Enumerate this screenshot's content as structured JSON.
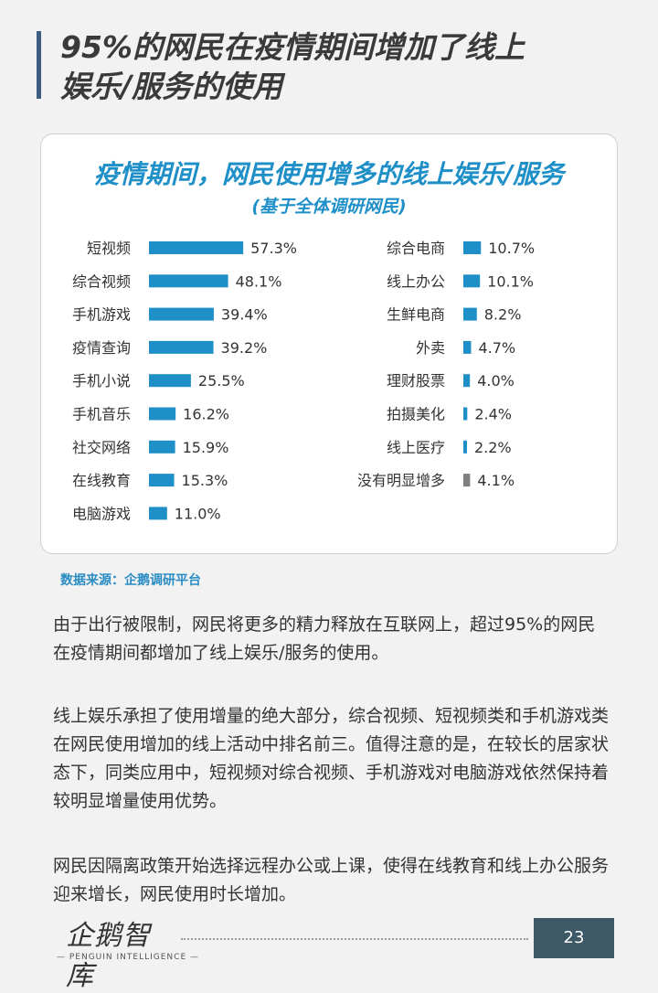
{
  "header": {
    "title_line1": "95%的网民在疫情期间增加了线上",
    "title_line2": "娱乐/服务的使用"
  },
  "chart": {
    "title": "疫情期间，网民使用增多的线上娱乐/服务",
    "subtitle": "(基于全体调研网民)"
  },
  "chart_data": {
    "type": "bar",
    "orientation": "horizontal",
    "title": "疫情期间，网民使用增多的线上娱乐/服务",
    "subtitle": "(基于全体调研网民)",
    "unit": "%",
    "categories": [
      "短视频",
      "综合视频",
      "手机游戏",
      "疫情查询",
      "手机小说",
      "手机音乐",
      "社交网络",
      "在线教育",
      "电脑游戏",
      "综合电商",
      "线上办公",
      "生鲜电商",
      "外卖",
      "理财股票",
      "拍摄美化",
      "线上医疗",
      "没有明显增多"
    ],
    "values": [
      57.3,
      48.1,
      39.4,
      39.2,
      25.5,
      16.2,
      15.9,
      15.3,
      11.0,
      10.7,
      10.1,
      8.2,
      4.7,
      4.0,
      2.4,
      2.2,
      4.1
    ],
    "value_labels": [
      "57.3%",
      "48.1%",
      "39.4%",
      "39.2%",
      "25.5%",
      "16.2%",
      "15.9%",
      "15.3%",
      "11.0%",
      "10.7%",
      "10.1%",
      "8.2%",
      "4.7%",
      "4.0%",
      "2.4%",
      "2.2%",
      "4.1%"
    ],
    "colors": [
      "#1f8fc8",
      "#1f8fc8",
      "#1f8fc8",
      "#1f8fc8",
      "#1f8fc8",
      "#1f8fc8",
      "#1f8fc8",
      "#1f8fc8",
      "#1f8fc8",
      "#1f8fc8",
      "#1f8fc8",
      "#1f8fc8",
      "#1f8fc8",
      "#1f8fc8",
      "#1f8fc8",
      "#1f8fc8",
      "#7f7f7f"
    ],
    "layout": "two-column",
    "grid": false,
    "legend": "none"
  },
  "source": "数据来源：企鹅调研平台",
  "paragraphs": [
    "由于出行被限制，网民将更多的精力释放在互联网上，超过95%的网民在疫情期间都增加了线上娱乐/服务的使用。",
    "线上娱乐承担了使用增量的绝大部分，综合视频、短视频类和手机游戏类在网民使用增加的线上活动中排名前三。值得注意的是，在较长的居家状态下，同类应用中，短视频对综合视频、手机游戏对电脑游戏依然保持着较明显增量使用优势。",
    "网民因隔离政策开始选择远程办公或上课，使得在线教育和线上办公服务迎来增长，网民使用时长增加。"
  ],
  "footer": {
    "logo_text": "企鹅智库",
    "logo_sub": "— PENGUIN INTELLIGENCE —",
    "page_number": "23"
  },
  "colors": {
    "accent": "#1f8fc8",
    "neutral_bar": "#7f7f7f",
    "title_bar": "#3d5d80",
    "page_badge": "#3d5866"
  }
}
